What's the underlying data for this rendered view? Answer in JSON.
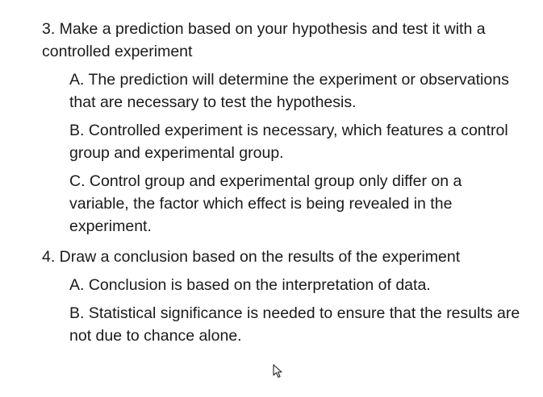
{
  "points": [
    {
      "text": "3. Make a prediction based on your hypothesis and test it with a controlled experiment",
      "subs": [
        "A. The prediction will determine the experiment or observations that are necessary to test the hypothesis.",
        "B. Controlled experiment is necessary, which features a control group and experimental group.",
        "C. Control group and experimental group only differ on a variable, the factor which effect is being revealed in the experiment."
      ]
    },
    {
      "text": "4. Draw a conclusion based on the results of the experiment",
      "subs": [
        "A. Conclusion is based on the interpretation of data.",
        "B. Statistical significance is needed to ensure that the results are not due to chance alone."
      ]
    }
  ],
  "icons": {
    "cursor": "mouse-pointer-icon"
  }
}
